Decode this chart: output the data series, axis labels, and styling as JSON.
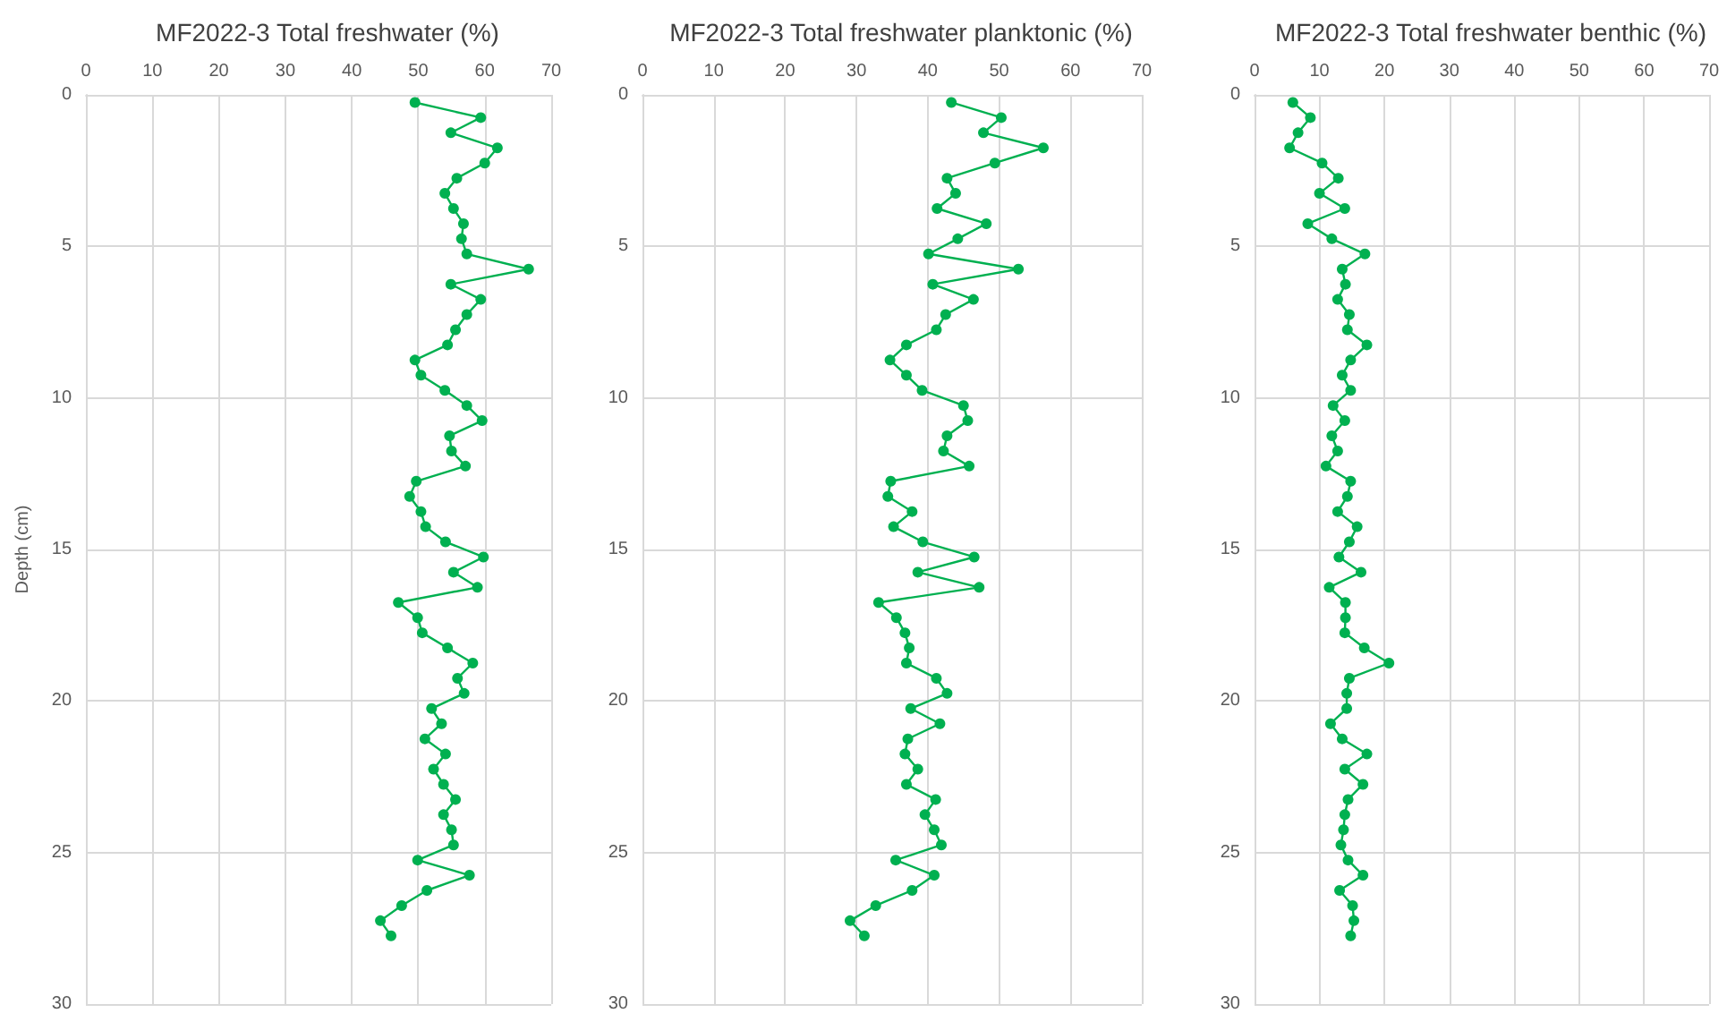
{
  "chart_data": [
    {
      "type": "line",
      "title": "MF2022-3 Total freshwater (%)",
      "ylabel": "Depth (cm)",
      "xlim": [
        0,
        70
      ],
      "xticks": [
        0,
        10,
        20,
        30,
        40,
        50,
        60,
        70
      ],
      "ylim": [
        30,
        0
      ],
      "yticks": [
        0,
        5,
        10,
        15,
        20,
        25,
        30
      ],
      "grid": true,
      "marker": "circle",
      "series": [
        {
          "color": "#00b050",
          "x": [
            49.5,
            59.4,
            54.9,
            61.9,
            60.0,
            55.8,
            54.0,
            55.3,
            56.8,
            56.5,
            57.3,
            66.6,
            54.9,
            59.4,
            57.3,
            55.6,
            54.4,
            49.5,
            50.4,
            54.0,
            57.3,
            59.6,
            54.7,
            55.0,
            57.1,
            49.7,
            48.7,
            50.4,
            51.1,
            54.1,
            59.8,
            55.3,
            58.9,
            47.0,
            49.9,
            50.6,
            54.4,
            58.2,
            55.9,
            56.9,
            52.0,
            53.5,
            51.0,
            54.1,
            52.3,
            53.8,
            55.6,
            53.8,
            55.0,
            55.3,
            49.9,
            57.7,
            51.3,
            47.5,
            44.3,
            45.9
          ],
          "values": [
            0.25,
            0.75,
            1.25,
            1.75,
            2.25,
            2.75,
            3.25,
            3.75,
            4.25,
            4.75,
            5.25,
            5.75,
            6.25,
            6.75,
            7.25,
            7.75,
            8.25,
            8.75,
            9.25,
            9.75,
            10.25,
            10.75,
            11.25,
            11.75,
            12.25,
            12.75,
            13.25,
            13.75,
            14.25,
            14.75,
            15.25,
            15.75,
            16.25,
            16.75,
            17.25,
            17.75,
            18.25,
            18.75,
            19.25,
            19.75,
            20.25,
            20.75,
            21.25,
            21.75,
            22.25,
            22.75,
            23.25,
            23.75,
            24.25,
            24.75,
            25.25,
            25.75,
            26.25,
            26.75,
            27.25,
            27.75
          ]
        }
      ]
    },
    {
      "type": "line",
      "title": "MF2022-3 Total freshwater planktonic (%)",
      "xlim": [
        0,
        70
      ],
      "xticks": [
        0,
        10,
        20,
        30,
        40,
        50,
        60,
        70
      ],
      "ylim": [
        30,
        0
      ],
      "yticks": [
        0,
        5,
        10,
        15,
        20,
        25,
        30
      ],
      "grid": true,
      "marker": "circle",
      "series": [
        {
          "color": "#00b050",
          "x": [
            43.3,
            50.3,
            47.8,
            56.2,
            49.4,
            42.7,
            43.9,
            41.3,
            48.2,
            44.2,
            40.1,
            52.7,
            40.7,
            46.4,
            42.5,
            41.2,
            37.0,
            34.7,
            37.0,
            39.2,
            45.0,
            45.6,
            42.7,
            42.2,
            45.8,
            34.8,
            34.4,
            37.8,
            35.2,
            39.3,
            46.5,
            38.6,
            47.2,
            33.1,
            35.6,
            36.8,
            37.4,
            37.0,
            41.2,
            42.7,
            37.6,
            41.7,
            37.2,
            36.8,
            38.6,
            37.0,
            41.1,
            39.6,
            40.9,
            41.9,
            35.5,
            40.9,
            37.8,
            32.7,
            29.1,
            31.1
          ],
          "values": [
            0.25,
            0.75,
            1.25,
            1.75,
            2.25,
            2.75,
            3.25,
            3.75,
            4.25,
            4.75,
            5.25,
            5.75,
            6.25,
            6.75,
            7.25,
            7.75,
            8.25,
            8.75,
            9.25,
            9.75,
            10.25,
            10.75,
            11.25,
            11.75,
            12.25,
            12.75,
            13.25,
            13.75,
            14.25,
            14.75,
            15.25,
            15.75,
            16.25,
            16.75,
            17.25,
            17.75,
            18.25,
            18.75,
            19.25,
            19.75,
            20.25,
            20.75,
            21.25,
            21.75,
            22.25,
            22.75,
            23.25,
            23.75,
            24.25,
            24.75,
            25.25,
            25.75,
            26.25,
            26.75,
            27.25,
            27.75
          ]
        }
      ]
    },
    {
      "type": "line",
      "title": "MF2022-3 Total freshwater benthic (%)",
      "xlim": [
        0,
        70
      ],
      "xticks": [
        0,
        10,
        20,
        30,
        40,
        50,
        60,
        70
      ],
      "ylim": [
        30,
        0
      ],
      "yticks": [
        0,
        5,
        10,
        15,
        20,
        25,
        30
      ],
      "grid": true,
      "marker": "circle",
      "series": [
        {
          "color": "#00b050",
          "x": [
            5.9,
            8.6,
            6.7,
            5.4,
            10.4,
            12.9,
            10.0,
            13.9,
            8.2,
            11.9,
            17.0,
            13.5,
            14.0,
            12.8,
            14.6,
            14.3,
            17.3,
            14.8,
            13.5,
            14.8,
            12.1,
            13.9,
            11.9,
            12.8,
            11.0,
            14.8,
            14.3,
            12.8,
            15.8,
            14.6,
            13.0,
            16.4,
            11.5,
            14.0,
            14.0,
            13.9,
            16.9,
            20.7,
            14.6,
            14.2,
            14.2,
            11.7,
            13.5,
            17.3,
            13.9,
            16.7,
            14.4,
            13.9,
            13.7,
            13.3,
            14.4,
            16.7,
            13.1,
            15.1,
            15.3,
            14.8
          ],
          "values": [
            0.25,
            0.75,
            1.25,
            1.75,
            2.25,
            2.75,
            3.25,
            3.75,
            4.25,
            4.75,
            5.25,
            5.75,
            6.25,
            6.75,
            7.25,
            7.75,
            8.25,
            8.75,
            9.25,
            9.75,
            10.25,
            10.75,
            11.25,
            11.75,
            12.25,
            12.75,
            13.25,
            13.75,
            14.25,
            14.75,
            15.25,
            15.75,
            16.25,
            16.75,
            17.25,
            17.75,
            18.25,
            18.75,
            19.25,
            19.75,
            20.25,
            20.75,
            21.25,
            21.75,
            22.25,
            22.75,
            23.25,
            23.75,
            24.25,
            24.75,
            25.25,
            25.75,
            26.25,
            26.75,
            27.25,
            27.75
          ]
        }
      ]
    }
  ]
}
